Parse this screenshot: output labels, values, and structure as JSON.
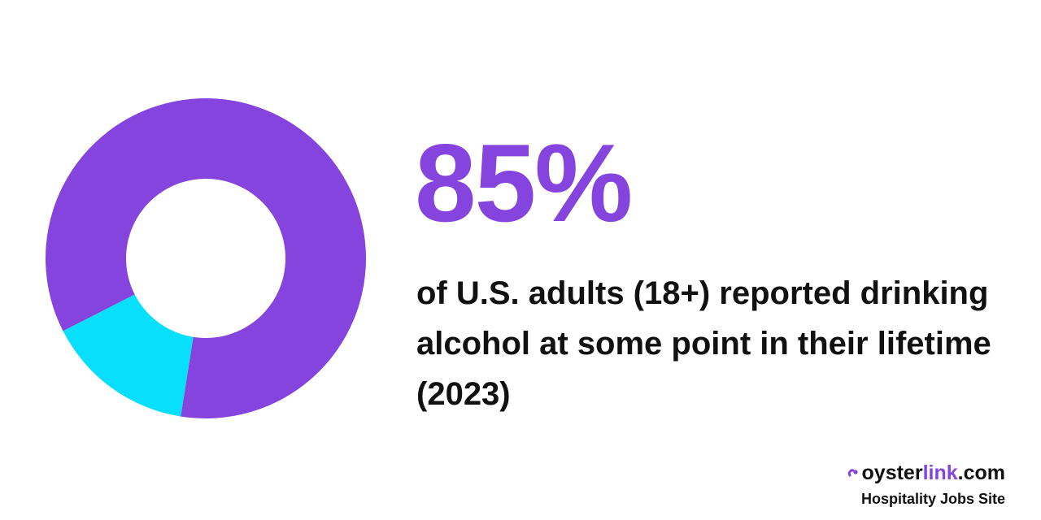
{
  "colors": {
    "primary": "#8444DD",
    "secondary": "#07DFFD",
    "text": "#111111",
    "background": "#FFFFFF"
  },
  "headline": {
    "value": "85%"
  },
  "caption": {
    "text": "of U.S. adults (18+) reported drinking alcohol at some point in their lifetime (2023)"
  },
  "brand": {
    "mark_icon": "oyster-logo-icon",
    "name_part1": "oyster",
    "name_part2": "link",
    "name_part3": ".com",
    "tagline": "Hospitality Jobs Site"
  },
  "chart_data": {
    "type": "pie",
    "variant": "donut",
    "title": "",
    "slices": [
      {
        "value": 85,
        "color": "#8444DD"
      },
      {
        "value": 15,
        "color": "#07DFFD"
      }
    ]
  }
}
